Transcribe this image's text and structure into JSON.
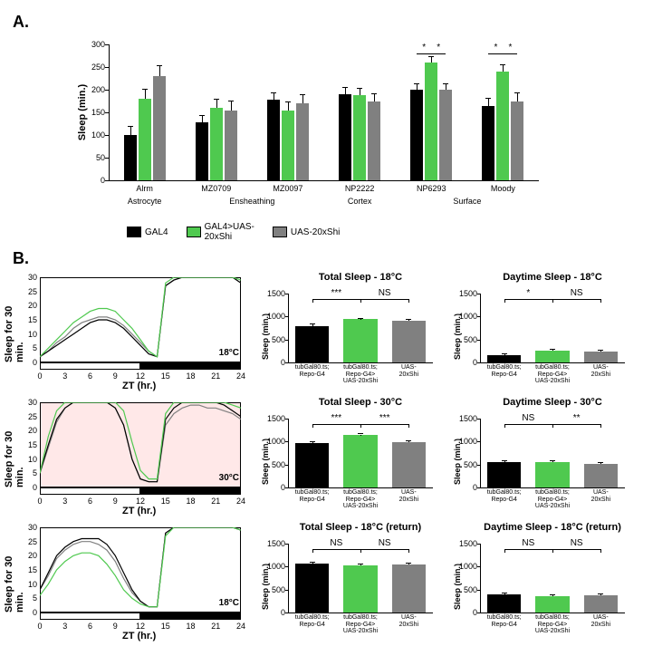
{
  "panelA": {
    "label": "A.",
    "chart": {
      "type": "bar",
      "ylabel": "Sleep (min.)",
      "ylim": [
        0,
        300
      ],
      "ytick_step": 50,
      "yticks": [
        0,
        50,
        100,
        150,
        200,
        250,
        300
      ],
      "bar_colors": [
        "#000000",
        "#4fc94f",
        "#808080"
      ],
      "groups": [
        {
          "name": "Alrm",
          "sub": "Astrocyte",
          "values": [
            100,
            180,
            230
          ],
          "errs": [
            18,
            20,
            22
          ]
        },
        {
          "name": "MZ0709",
          "sub": "Ensheathing",
          "values": [
            128,
            160,
            155
          ],
          "errs": [
            15,
            18,
            20
          ]
        },
        {
          "name": "MZ0097",
          "sub": "Ensheathing",
          "values": [
            178,
            155,
            170
          ],
          "errs": [
            15,
            18,
            18
          ]
        },
        {
          "name": "NP2222",
          "sub": "Cortex",
          "values": [
            190,
            188,
            175
          ],
          "errs": [
            15,
            15,
            15
          ]
        },
        {
          "name": "NP6293",
          "sub": "Surface",
          "values": [
            200,
            260,
            200
          ],
          "errs": [
            12,
            12,
            12
          ],
          "sig": [
            "*",
            "*"
          ]
        },
        {
          "name": "Moody",
          "sub": "Surface",
          "values": [
            165,
            240,
            175
          ],
          "errs": [
            15,
            15,
            18
          ],
          "sig": [
            "*",
            "*"
          ]
        }
      ],
      "sublabels": [
        {
          "text": "Astrocyte",
          "span": [
            0,
            0
          ]
        },
        {
          "text": "Ensheathing",
          "span": [
            1,
            2
          ]
        },
        {
          "text": "Cortex",
          "span": [
            3,
            3
          ]
        },
        {
          "text": "Surface",
          "span": [
            4,
            5
          ]
        }
      ]
    },
    "legend": [
      {
        "color": "#000000",
        "label": "GAL4"
      },
      {
        "color": "#4fc94f",
        "label": "GAL4>UAS-\n20xShi"
      },
      {
        "color": "#808080",
        "label": "UAS-20xShi"
      }
    ]
  },
  "panelB": {
    "label": "B.",
    "rows": [
      {
        "trace": {
          "ylabel": "Sleep for 30 min.",
          "xlabel": "ZT (hr.)",
          "ylim": [
            0,
            30
          ],
          "ytick_step": 5,
          "yticks": [
            0,
            5,
            10,
            15,
            20,
            25,
            30
          ],
          "xlim": [
            0,
            24
          ],
          "xticks": [
            0,
            3,
            6,
            9,
            12,
            15,
            18,
            21,
            24
          ],
          "background": "#ffffff",
          "temp": "18°C",
          "line_colors": [
            "#000000",
            "#4fc94f",
            "#808080"
          ],
          "traces": {
            "black": [
              2,
              4,
              6,
              8,
              10,
              12,
              14,
              15,
              15,
              14,
              12,
              9,
              6,
              3,
              2,
              27,
              29,
              30,
              30,
              30,
              30,
              30,
              30,
              30,
              28
            ],
            "green": [
              2,
              5,
              8,
              11,
              14,
              16,
              18,
              19,
              19,
              18,
              15,
              12,
              8,
              4,
              2,
              28,
              30,
              30,
              30,
              30,
              30,
              30,
              30,
              30,
              29
            ],
            "gray": [
              2,
              4,
              7,
              9,
              12,
              14,
              15,
              16,
              16,
              15,
              13,
              10,
              7,
              4,
              2,
              27,
              29,
              30,
              30,
              30,
              30,
              30,
              30,
              30,
              28
            ]
          }
        },
        "total": {
          "title": "Total Sleep - 18°C",
          "ylabel": "Sleep  (min.)",
          "ylim": [
            0,
            1500
          ],
          "ytick_step": 500,
          "yticks": [
            0,
            500,
            1000,
            1500
          ],
          "values": [
            790,
            940,
            900
          ],
          "errs": [
            30,
            15,
            20
          ],
          "sig": [
            "***",
            "NS"
          ]
        },
        "day": {
          "title": "Daytime Sleep - 18°C",
          "ylabel": "Sleep  (min.)",
          "ylim": [
            0,
            1500
          ],
          "ytick_step": 500,
          "yticks": [
            0,
            500,
            1000,
            1500
          ],
          "values": [
            160,
            260,
            240
          ],
          "errs": [
            20,
            20,
            20
          ],
          "sig": [
            "*",
            "NS"
          ]
        }
      },
      {
        "trace": {
          "ylabel": "Sleep for 30 min.",
          "xlabel": "ZT (hr.)",
          "ylim": [
            0,
            30
          ],
          "ytick_step": 5,
          "yticks": [
            0,
            5,
            10,
            15,
            20,
            25,
            30
          ],
          "xlim": [
            0,
            24
          ],
          "xticks": [
            0,
            3,
            6,
            9,
            12,
            15,
            18,
            21,
            24
          ],
          "background": "#ffe8e8",
          "temp": "30°C",
          "line_colors": [
            "#000000",
            "#4fc94f",
            "#808080"
          ],
          "traces": {
            "black": [
              5,
              15,
              24,
              28,
              30,
              30,
              30,
              30,
              30,
              28,
              22,
              10,
              3,
              2,
              2,
              24,
              28,
              30,
              30,
              30,
              30,
              30,
              29,
              27,
              25
            ],
            "green": [
              5,
              18,
              27,
              30,
              30,
              30,
              30,
              30,
              30,
              30,
              27,
              16,
              6,
              3,
              3,
              26,
              30,
              30,
              30,
              30,
              30,
              30,
              30,
              29,
              28
            ],
            "gray": [
              5,
              14,
              23,
              28,
              30,
              30,
              30,
              30,
              30,
              28,
              22,
              10,
              3,
              2,
              2,
              22,
              26,
              28,
              29,
              29,
              28,
              28,
              27,
              26,
              24
            ]
          }
        },
        "total": {
          "title": "Total Sleep - 30°C",
          "ylabel": "Sleep  (min.)",
          "ylim": [
            0,
            1500
          ],
          "ytick_step": 500,
          "yticks": [
            0,
            500,
            1000,
            1500
          ],
          "values": [
            960,
            1140,
            990
          ],
          "errs": [
            25,
            15,
            20
          ],
          "sig": [
            "***",
            "***"
          ]
        },
        "day": {
          "title": "Daytime Sleep - 30°C",
          "ylabel": "Sleep  (min.)",
          "ylim": [
            0,
            1500
          ],
          "ytick_step": 500,
          "yticks": [
            0,
            500,
            1000,
            1500
          ],
          "values": [
            560,
            560,
            510
          ],
          "errs": [
            20,
            20,
            20
          ],
          "sig": [
            "NS",
            "**"
          ]
        }
      },
      {
        "trace": {
          "ylabel": "Sleep for 30 min.",
          "xlabel": "ZT (hr.)",
          "ylim": [
            0,
            30
          ],
          "ytick_step": 5,
          "yticks": [
            0,
            5,
            10,
            15,
            20,
            25,
            30
          ],
          "xlim": [
            0,
            24
          ],
          "xticks": [
            0,
            3,
            6,
            9,
            12,
            15,
            18,
            21,
            24
          ],
          "background": "#ffffff",
          "temp": "18°C",
          "line_colors": [
            "#000000",
            "#4fc94f",
            "#808080"
          ],
          "traces": {
            "black": [
              8,
              14,
              20,
              23,
              25,
              26,
              26,
              26,
              24,
              20,
              14,
              8,
              4,
              2,
              2,
              28,
              30,
              30,
              30,
              30,
              30,
              30,
              30,
              30,
              29
            ],
            "green": [
              6,
              10,
              15,
              18,
              20,
              21,
              21,
              20,
              17,
              13,
              8,
              5,
              3,
              2,
              2,
              27,
              30,
              30,
              30,
              30,
              30,
              30,
              30,
              30,
              29
            ],
            "gray": [
              8,
              13,
              19,
              22,
              24,
              25,
              25,
              24,
              22,
              18,
              12,
              7,
              4,
              2,
              2,
              28,
              30,
              30,
              30,
              30,
              30,
              30,
              30,
              30,
              29
            ]
          }
        },
        "total": {
          "title": "Total Sleep - 18°C (return)",
          "ylabel": "Sleep  (min.)",
          "ylim": [
            0,
            1500
          ],
          "ytick_step": 500,
          "yticks": [
            0,
            500,
            1000,
            1500
          ],
          "values": [
            1060,
            1030,
            1050
          ],
          "errs": [
            20,
            20,
            20
          ],
          "sig": [
            "NS",
            "NS"
          ]
        },
        "day": {
          "title": "Daytime Sleep - 18°C (return)",
          "ylabel": "Sleep  (min.)",
          "ylim": [
            0,
            1500
          ],
          "ytick_step": 500,
          "yticks": [
            0,
            500,
            1000,
            1500
          ],
          "values": [
            390,
            350,
            370
          ],
          "errs": [
            20,
            20,
            20
          ],
          "sig": [
            "NS",
            "NS"
          ]
        }
      }
    ],
    "bar_xlabels": [
      "tubGal80.ts;\nRepo-G4",
      "tubGal80.ts;\nRepo-G4>\nUAS-20xShi",
      "UAS-\n20xShi"
    ],
    "bar_colors": [
      "#000000",
      "#4fc94f",
      "#808080"
    ]
  }
}
